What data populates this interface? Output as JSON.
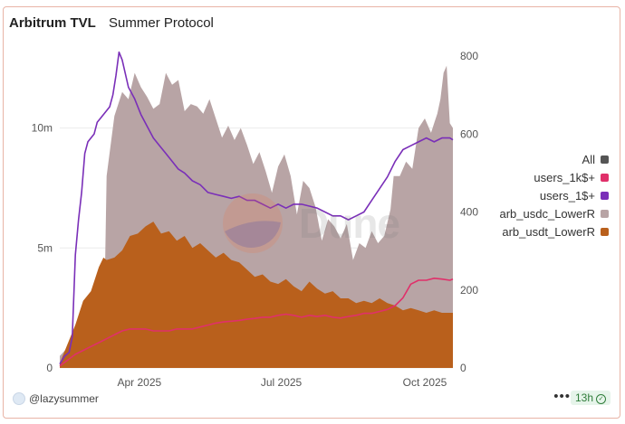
{
  "header": {
    "title": "Arbitrum TVL",
    "subtitle": "Summer Protocol"
  },
  "footer": {
    "handle": "@lazysummer",
    "age": "13h",
    "more": "•••"
  },
  "watermark": {
    "text": "Dune"
  },
  "colors": {
    "arb_usdc": "#b8a4a5",
    "arb_usdt": "#b9601c",
    "users_1": "#7a2fb8",
    "users_1k": "#e0306a",
    "all": "#555555",
    "grid": "#ececec",
    "axis_text": "#555555"
  },
  "chart_data": {
    "type": "area",
    "title": "Arbitrum TVL",
    "subtitle": "Summer Protocol",
    "x_axis": {
      "unit": "days since 2025-02-08",
      "range": [
        0,
        252
      ],
      "ticks": [
        {
          "x": 51,
          "label": "Apr 2025"
        },
        {
          "x": 142,
          "label": "Jul 2025"
        },
        {
          "x": 234,
          "label": "Oct 2025"
        }
      ]
    },
    "y_left": {
      "range": [
        0,
        13000000
      ],
      "ticks": [
        {
          "v": 0,
          "label": "0"
        },
        {
          "v": 5000000,
          "label": "5m"
        },
        {
          "v": 10000000,
          "label": "10m"
        }
      ]
    },
    "y_right": {
      "range": [
        0,
        800
      ],
      "ticks": [
        {
          "v": 0,
          "label": "0"
        },
        {
          "v": 200,
          "label": "200"
        },
        {
          "v": 400,
          "label": "400"
        },
        {
          "v": 600,
          "label": "600"
        },
        {
          "v": 800,
          "label": "800"
        }
      ]
    },
    "legend": [
      "All",
      "users_1k$+",
      "users_1$+",
      "arb_usdc_LowerR",
      "arb_usdt_LowerR"
    ],
    "series": [
      {
        "name": "arb_usdc_LowerR",
        "kind": "area",
        "axis": "left",
        "stacked_on": "arb_usdt_LowerR",
        "x": [
          0,
          10,
          20,
          25,
          29,
          30,
          35,
          40,
          44,
          48,
          52,
          56,
          60,
          64,
          68,
          72,
          76,
          80,
          84,
          88,
          92,
          96,
          100,
          104,
          108,
          112,
          116,
          120,
          124,
          128,
          132,
          136,
          140,
          144,
          148,
          152,
          156,
          160,
          164,
          168,
          172,
          176,
          180,
          184,
          188,
          192,
          196,
          200,
          204,
          208,
          212,
          214,
          218,
          222,
          226,
          230,
          234,
          238,
          240,
          242,
          244,
          246,
          248,
          250,
          252
        ],
        "values": [
          500000,
          1200000,
          2000000,
          3500000,
          4000000,
          8000000,
          10500000,
          11500000,
          11200000,
          12300000,
          11700000,
          11300000,
          10800000,
          11000000,
          12300000,
          11800000,
          12000000,
          10700000,
          11000000,
          10900000,
          10600000,
          11200000,
          10400000,
          9600000,
          10100000,
          9500000,
          10000000,
          9300000,
          8500000,
          9000000,
          8200000,
          7300000,
          8400000,
          8900000,
          8000000,
          6400000,
          7800000,
          7500000,
          6700000,
          5300000,
          6200000,
          5900000,
          5400000,
          6000000,
          4500000,
          5200000,
          5000000,
          5700000,
          5200000,
          5500000,
          6600000,
          8000000,
          8000000,
          8600000,
          8300000,
          10000000,
          10400000,
          9800000,
          10200000,
          10600000,
          11200000,
          12300000,
          12600000,
          10200000,
          10000000
        ]
      },
      {
        "name": "arb_usdt_LowerR",
        "kind": "area",
        "axis": "left",
        "x": [
          0,
          5,
          10,
          15,
          20,
          25,
          28,
          30,
          35,
          40,
          45,
          50,
          55,
          60,
          65,
          70,
          75,
          80,
          85,
          90,
          95,
          100,
          105,
          110,
          115,
          120,
          125,
          130,
          135,
          140,
          145,
          150,
          155,
          160,
          165,
          170,
          175,
          180,
          185,
          190,
          195,
          200,
          205,
          210,
          215,
          220,
          225,
          230,
          235,
          240,
          245,
          250,
          252
        ],
        "values": [
          200000,
          1000000,
          1800000,
          2800000,
          3200000,
          4200000,
          4600000,
          4500000,
          4600000,
          4900000,
          5500000,
          5600000,
          5900000,
          6100000,
          5600000,
          5700000,
          5300000,
          5500000,
          5000000,
          5200000,
          4900000,
          4600000,
          4800000,
          4500000,
          4400000,
          4100000,
          3800000,
          3900000,
          3600000,
          3500000,
          3700000,
          3400000,
          3200000,
          3600000,
          3300000,
          3100000,
          3200000,
          2900000,
          2900000,
          2700000,
          2800000,
          2700000,
          2900000,
          2700000,
          2600000,
          2400000,
          2500000,
          2400000,
          2300000,
          2400000,
          2300000,
          2300000,
          2300000
        ]
      },
      {
        "name": "users_1$+",
        "kind": "line",
        "axis": "right",
        "x": [
          0,
          3,
          6,
          8,
          10,
          12,
          14,
          16,
          18,
          20,
          22,
          24,
          26,
          28,
          30,
          32,
          34,
          36,
          38,
          40,
          44,
          48,
          52,
          56,
          60,
          64,
          68,
          72,
          76,
          80,
          85,
          90,
          95,
          100,
          105,
          110,
          115,
          120,
          125,
          130,
          135,
          140,
          145,
          150,
          155,
          160,
          165,
          170,
          175,
          180,
          185,
          190,
          195,
          200,
          205,
          210,
          215,
          220,
          225,
          230,
          235,
          240,
          245,
          250,
          252
        ],
        "values": [
          10,
          30,
          40,
          80,
          290,
          380,
          450,
          550,
          580,
          590,
          600,
          630,
          640,
          650,
          660,
          670,
          700,
          750,
          810,
          790,
          720,
          690,
          650,
          620,
          590,
          570,
          550,
          530,
          510,
          500,
          480,
          470,
          450,
          445,
          440,
          435,
          440,
          430,
          430,
          420,
          410,
          420,
          410,
          420,
          420,
          415,
          410,
          400,
          390,
          390,
          380,
          390,
          400,
          430,
          460,
          490,
          530,
          560,
          570,
          580,
          590,
          580,
          590,
          590,
          585
        ]
      },
      {
        "name": "users_1k$+",
        "kind": "line",
        "axis": "right",
        "x": [
          0,
          5,
          10,
          15,
          20,
          25,
          30,
          35,
          40,
          45,
          50,
          55,
          60,
          65,
          70,
          75,
          80,
          85,
          90,
          95,
          100,
          105,
          110,
          115,
          120,
          125,
          130,
          135,
          140,
          145,
          150,
          155,
          160,
          165,
          170,
          175,
          180,
          185,
          190,
          195,
          200,
          205,
          210,
          215,
          220,
          225,
          230,
          235,
          240,
          245,
          250,
          252
        ],
        "values": [
          5,
          20,
          35,
          45,
          55,
          65,
          75,
          85,
          95,
          100,
          100,
          100,
          95,
          95,
          95,
          100,
          100,
          100,
          105,
          110,
          115,
          118,
          120,
          122,
          125,
          127,
          130,
          130,
          135,
          138,
          135,
          130,
          135,
          132,
          135,
          130,
          128,
          132,
          135,
          140,
          140,
          145,
          150,
          160,
          180,
          215,
          225,
          225,
          230,
          228,
          225,
          228
        ]
      }
    ]
  }
}
